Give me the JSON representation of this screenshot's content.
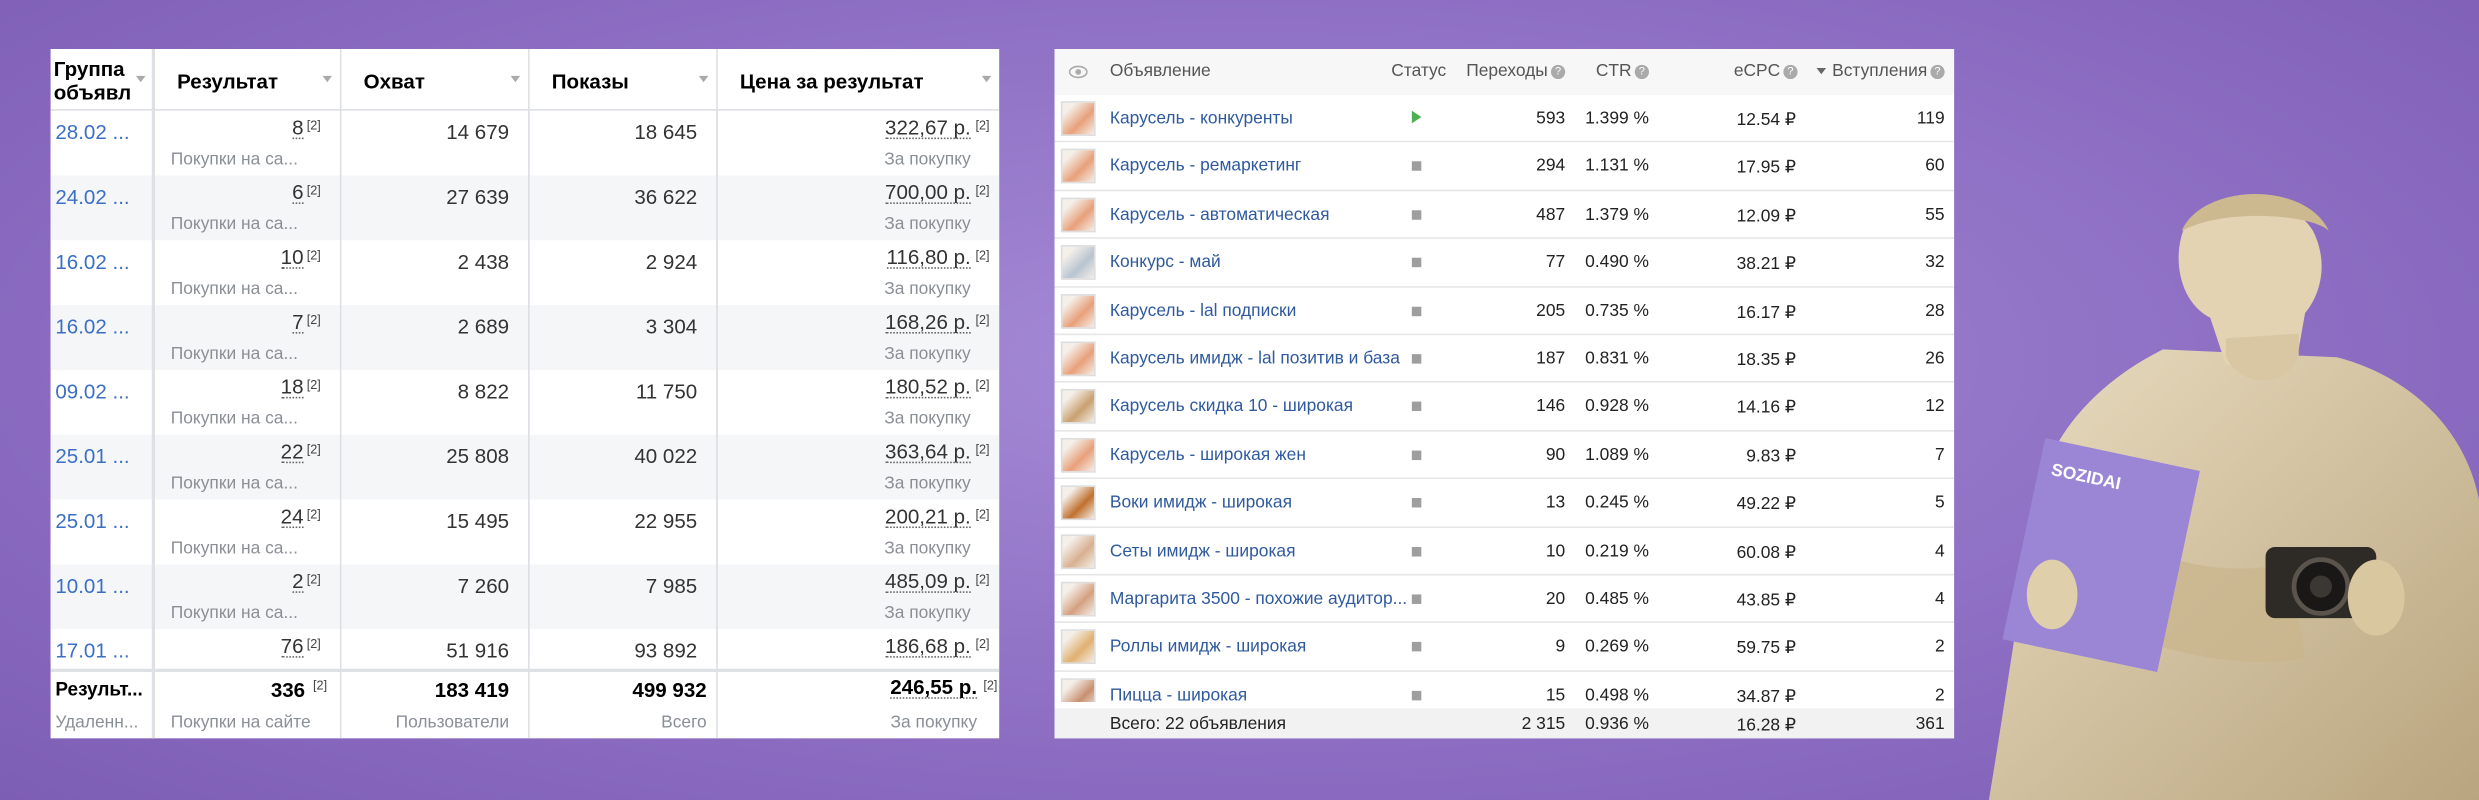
{
  "left_table": {
    "headers": [
      "Группа объявл",
      "Результат",
      "Охват",
      "Показы",
      "Цена за результат"
    ],
    "rows": [
      {
        "group": "28.02 ...",
        "result": "8",
        "result_note": "[2]",
        "result_desc": "Покупки на са...",
        "reach": "14 679",
        "impressions": "18 645",
        "price": "322,67 р.",
        "price_note": "[2]",
        "price_desc": "За покупку"
      },
      {
        "group": "24.02 ...",
        "result": "6",
        "result_note": "[2]",
        "result_desc": "Покупки на са...",
        "reach": "27 639",
        "impressions": "36 622",
        "price": "700,00 р.",
        "price_note": "[2]",
        "price_desc": "За покупку"
      },
      {
        "group": "16.02 ...",
        "result": "10",
        "result_note": "[2]",
        "result_desc": "Покупки на са...",
        "reach": "2 438",
        "impressions": "2 924",
        "price": "116,80 р.",
        "price_note": "[2]",
        "price_desc": "За покупку"
      },
      {
        "group": "16.02 ...",
        "result": "7",
        "result_note": "[2]",
        "result_desc": "Покупки на са...",
        "reach": "2 689",
        "impressions": "3 304",
        "price": "168,26 р.",
        "price_note": "[2]",
        "price_desc": "За покупку"
      },
      {
        "group": "09.02 ...",
        "result": "18",
        "result_note": "[2]",
        "result_desc": "Покупки на са...",
        "reach": "8 822",
        "impressions": "11 750",
        "price": "180,52 р.",
        "price_note": "[2]",
        "price_desc": "За покупку"
      },
      {
        "group": "25.01 ...",
        "result": "22",
        "result_note": "[2]",
        "result_desc": "Покупки на са...",
        "reach": "25 808",
        "impressions": "40 022",
        "price": "363,64 р.",
        "price_note": "[2]",
        "price_desc": "За покупку"
      },
      {
        "group": "25.01 ...",
        "result": "24",
        "result_note": "[2]",
        "result_desc": "Покупки на са...",
        "reach": "15 495",
        "impressions": "22 955",
        "price": "200,21 р.",
        "price_note": "[2]",
        "price_desc": "За покупку"
      },
      {
        "group": "10.01 ...",
        "result": "2",
        "result_note": "[2]",
        "result_desc": "Покупки на са...",
        "reach": "7 260",
        "impressions": "7 985",
        "price": "485,09 р.",
        "price_note": "[2]",
        "price_desc": "За покупку"
      },
      {
        "group": "17.01 ...",
        "result": "76",
        "result_note": "[2]",
        "reach": "51 916",
        "impressions": "93 892",
        "price": "186,68 р.",
        "price_note": "[2]"
      }
    ],
    "footer": {
      "group": "Результ...",
      "group_desc": "Удаленн...",
      "result": "336",
      "result_note": "[2]",
      "result_desc": "Покупки на сайте",
      "reach": "183 419",
      "reach_desc": "Пользователи",
      "impressions": "499 932",
      "impressions_desc": "Всего",
      "price": "246,55 р.",
      "price_note": "[2]",
      "price_desc": "За покупку"
    }
  },
  "right_table": {
    "headers": [
      "Объявление",
      "Статус",
      "Переходы",
      "CTR",
      "eCPC",
      "Вступления"
    ],
    "rows": [
      {
        "name": "Карусель - конкуренты",
        "status_color": "#4caf50",
        "clicks": "593",
        "ctr": "1.399 %",
        "ecpc": "12.54 ₽",
        "joins": "119"
      },
      {
        "name": "Карусель - ремаркетинг",
        "status_color": "#9e9e9e",
        "clicks": "294",
        "ctr": "1.131 %",
        "ecpc": "17.95 ₽",
        "joins": "60"
      },
      {
        "name": "Карусель - автоматическая",
        "status_color": "#9e9e9e",
        "clicks": "487",
        "ctr": "1.379 %",
        "ecpc": "12.09 ₽",
        "joins": "55"
      },
      {
        "name": "Конкурс - май",
        "status_color": "#9e9e9e",
        "clicks": "77",
        "ctr": "0.490 %",
        "ecpc": "38.21 ₽",
        "joins": "32"
      },
      {
        "name": "Карусель - lal подписки",
        "status_color": "#9e9e9e",
        "clicks": "205",
        "ctr": "0.735 %",
        "ecpc": "16.17 ₽",
        "joins": "28"
      },
      {
        "name": "Карусель имидж - lal позитив и база",
        "status_color": "#9e9e9e",
        "clicks": "187",
        "ctr": "0.831 %",
        "ecpc": "18.35 ₽",
        "joins": "26"
      },
      {
        "name": "Карусель скидка 10 - широкая",
        "status_color": "#9e9e9e",
        "clicks": "146",
        "ctr": "0.928 %",
        "ecpc": "14.16 ₽",
        "joins": "12"
      },
      {
        "name": "Карусель - широкая жен",
        "status_color": "#9e9e9e",
        "clicks": "90",
        "ctr": "1.089 %",
        "ecpc": "9.83 ₽",
        "joins": "7"
      },
      {
        "name": "Воки имидж - широкая",
        "status_color": "#9e9e9e",
        "clicks": "13",
        "ctr": "0.245 %",
        "ecpc": "49.22 ₽",
        "joins": "5"
      },
      {
        "name": "Сеты имидж - широкая",
        "status_color": "#9e9e9e",
        "clicks": "10",
        "ctr": "0.219 %",
        "ecpc": "60.08 ₽",
        "joins": "4"
      },
      {
        "name": "Маргарита 3500 - похожие аудитор...",
        "status_color": "#9e9e9e",
        "clicks": "20",
        "ctr": "0.485 %",
        "ecpc": "43.85 ₽",
        "joins": "4"
      },
      {
        "name": "Роллы имидж - широкая",
        "status_color": "#9e9e9e",
        "clicks": "9",
        "ctr": "0.269 %",
        "ecpc": "59.75 ₽",
        "joins": "2"
      },
      {
        "name": "Пицца - широкая",
        "status_color": "#9e9e9e",
        "clicks": "15",
        "ctr": "0.498 %",
        "ecpc": "34.87 ₽",
        "joins": "2"
      }
    ],
    "footer": {
      "label": "Всего: 22 объявления",
      "clicks": "2 315",
      "ctr": "0.936 %",
      "ecpc": "16.28 ₽",
      "joins": "361"
    }
  },
  "brand": "SOZIDAI"
}
